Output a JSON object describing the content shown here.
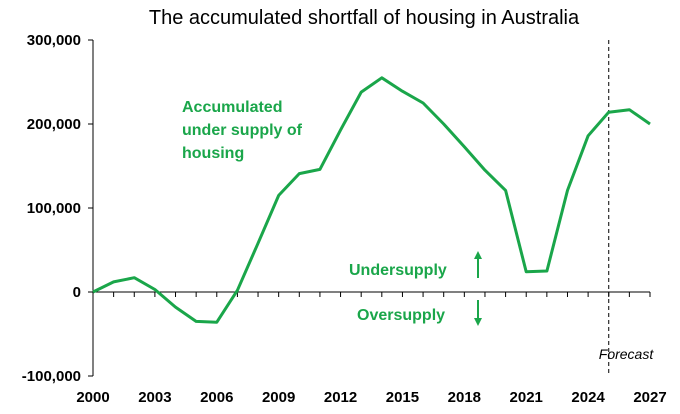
{
  "chart_data": {
    "type": "line",
    "title": "The accumulated shortfall of housing in Australia",
    "xlabel": "",
    "ylabel": "",
    "xlim": [
      2000,
      2027
    ],
    "ylim": [
      -100000,
      300000
    ],
    "x_ticks": [
      "2000",
      "2003",
      "2006",
      "2009",
      "2012",
      "2015",
      "2018",
      "2021",
      "2024",
      "2027"
    ],
    "y_ticks": [
      "300,000",
      "200,000",
      "100,000",
      "0",
      "-100,000"
    ],
    "grid": false,
    "series": [
      {
        "color": "#1aa64a",
        "x": [
          2000,
          2001,
          2002,
          2003,
          2004,
          2005,
          2006,
          2007,
          2008,
          2009,
          2010,
          2011,
          2012,
          2013,
          2014,
          2015,
          2016,
          2017,
          2018,
          2019,
          2020,
          2021,
          2022,
          2023,
          2024,
          2025,
          2026,
          2027
        ],
        "y": [
          0,
          12000,
          17000,
          3000,
          -18000,
          -35000,
          -36000,
          2000,
          58000,
          115000,
          141000,
          146000,
          193000,
          238000,
          255000,
          239000,
          225000,
          200000,
          173000,
          145000,
          121000,
          24000,
          25000,
          121000,
          186000,
          214000,
          217000,
          200000
        ]
      }
    ],
    "forecast_line": {
      "x": 2025,
      "label": "Forecast"
    },
    "annotations": {
      "line_label": [
        "Accumulated",
        "under supply of",
        "housing"
      ],
      "undersupply": "Undersupply",
      "oversupply": "Oversupply"
    },
    "colors": {
      "line": "#1aa64a",
      "annotation": "#1aa64a",
      "axis": "#000000"
    }
  }
}
